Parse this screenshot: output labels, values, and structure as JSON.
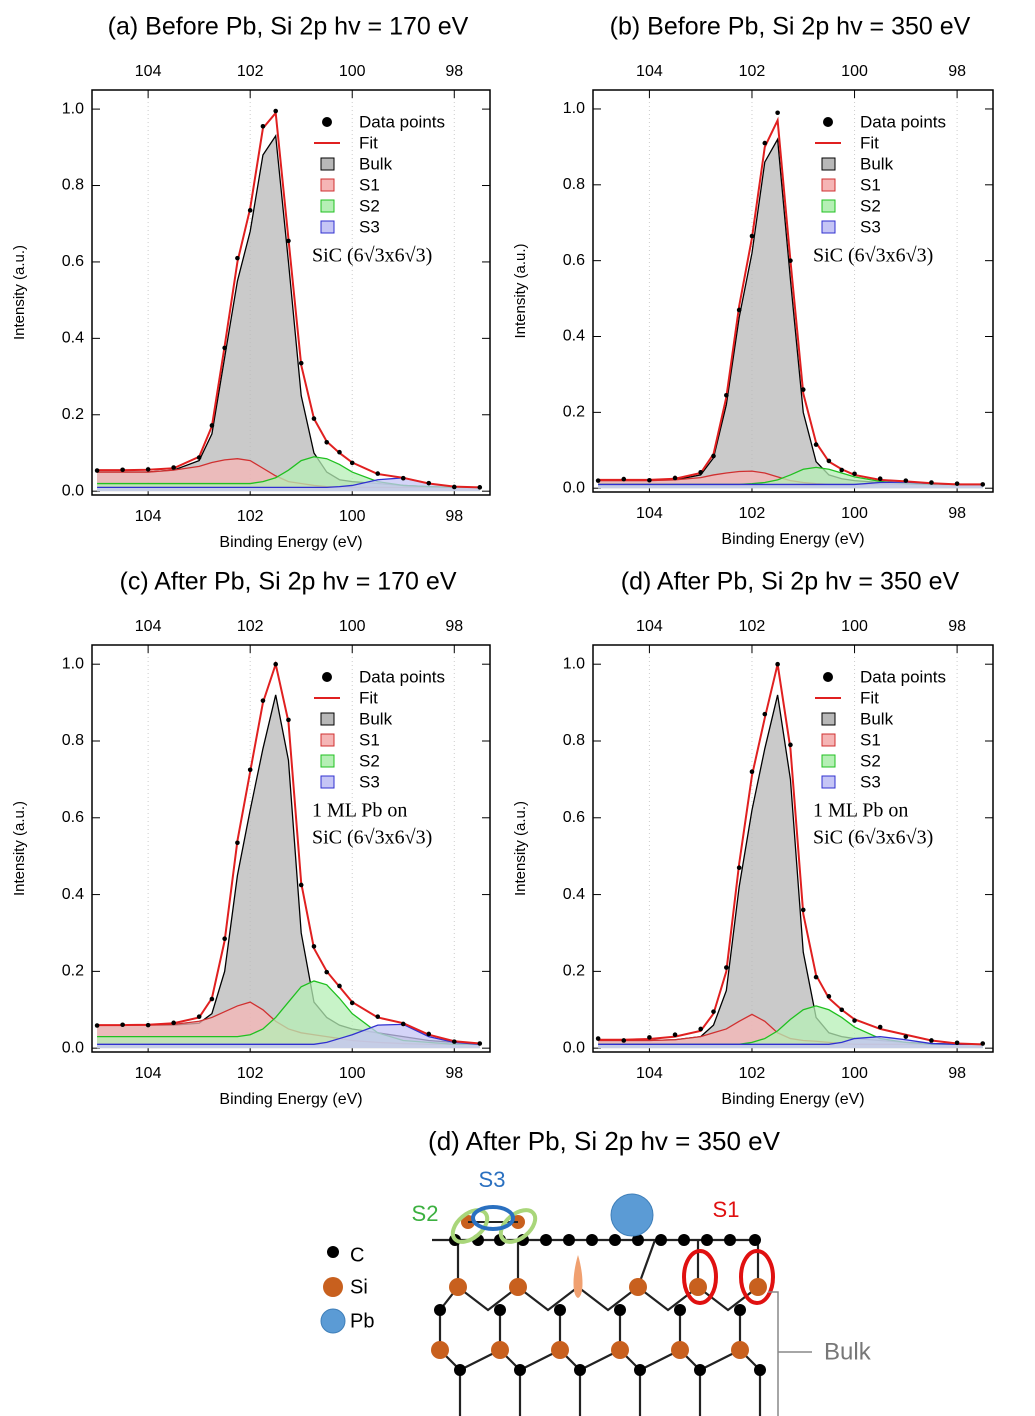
{
  "chart_data": [
    {
      "type": "line",
      "title": "(a)  Before Pb, Si 2p    hv = 170 eV",
      "xlabel": "Binding Energy (eV)",
      "ylabel": "Intensity (a.u.)",
      "annotations": [
        "SiC (6√3x6√3)"
      ],
      "xlim": [
        105.1,
        97.3
      ],
      "xticks": [
        104,
        102,
        100,
        98
      ],
      "ylim": [
        -0.01,
        1.05
      ],
      "yticks": [
        {
          "value": 0,
          "label": "0.0"
        },
        0.2,
        0.4,
        0.6,
        0.8,
        {
          "value": 1,
          "label": "1.0"
        }
      ],
      "grid": true,
      "x": [
        105,
        104.5,
        104,
        103.5,
        103,
        102.75,
        102.5,
        102.25,
        102,
        101.75,
        101.5,
        101.25,
        101,
        100.75,
        100.5,
        100.25,
        100,
        99.5,
        99,
        98.5,
        98,
        97.5
      ],
      "series": [
        {
          "name": "Data points",
          "type": "scatter",
          "color": "#000000",
          "values": [
            0.054,
            0.056,
            0.057,
            0.062,
            0.088,
            0.172,
            0.375,
            0.61,
            0.735,
            0.955,
            0.995,
            0.655,
            0.335,
            0.19,
            0.128,
            0.102,
            0.074,
            0.046,
            0.034,
            0.021,
            0.011,
            0.01
          ]
        },
        {
          "name": "Fit",
          "type": "line",
          "color": "#e02020",
          "values": [
            0.055,
            0.055,
            0.056,
            0.06,
            0.09,
            0.17,
            0.38,
            0.6,
            0.74,
            0.95,
            0.99,
            0.66,
            0.33,
            0.19,
            0.13,
            0.1,
            0.075,
            0.045,
            0.035,
            0.02,
            0.012,
            0.01
          ]
        },
        {
          "name": "Bulk",
          "type": "area",
          "color": "#000000",
          "fill": "#b8b8b8",
          "values": [
            0.05,
            0.05,
            0.05,
            0.055,
            0.08,
            0.15,
            0.35,
            0.55,
            0.68,
            0.88,
            0.93,
            0.6,
            0.25,
            0.1,
            0.05,
            0.03,
            0.025,
            0.02,
            0.015,
            0.012,
            0.01,
            0.01
          ]
        },
        {
          "name": "S1",
          "type": "area",
          "color": "#d03030",
          "fill": "#f5b5b5",
          "values": [
            0.05,
            0.05,
            0.05,
            0.055,
            0.065,
            0.075,
            0.082,
            0.085,
            0.08,
            0.06,
            0.04,
            0.025,
            0.02,
            0.015,
            0.012,
            0.011,
            0.01,
            0.01,
            0.01,
            0.01,
            0.01,
            0.01
          ]
        },
        {
          "name": "S2",
          "type": "area",
          "color": "#20c020",
          "fill": "#b5efb5",
          "values": [
            0.02,
            0.02,
            0.02,
            0.02,
            0.02,
            0.02,
            0.02,
            0.02,
            0.02,
            0.025,
            0.035,
            0.055,
            0.08,
            0.09,
            0.085,
            0.07,
            0.05,
            0.025,
            0.015,
            0.012,
            0.01,
            0.01
          ]
        },
        {
          "name": "S3",
          "type": "area",
          "color": "#3030d0",
          "fill": "#c5c5f5",
          "values": [
            0.01,
            0.01,
            0.01,
            0.01,
            0.01,
            0.01,
            0.01,
            0.01,
            0.01,
            0.01,
            0.01,
            0.01,
            0.01,
            0.01,
            0.01,
            0.012,
            0.015,
            0.03,
            0.035,
            0.02,
            0.012,
            0.01
          ]
        }
      ]
    },
    {
      "type": "line",
      "title": "(b)  Before Pb, Si 2p    hv = 350 eV",
      "xlabel": "Binding Energy (eV)",
      "ylabel": "Intensity (a.u.)",
      "annotations": [
        "SiC (6√3x6√3)"
      ],
      "xlim": [
        105.1,
        97.3
      ],
      "xticks": [
        104,
        102,
        100,
        98
      ],
      "ylim": [
        -0.01,
        1.05
      ],
      "yticks": [
        {
          "value": 0,
          "label": "0.0"
        },
        0.2,
        0.4,
        0.6,
        0.8,
        {
          "value": 1,
          "label": "1.0"
        }
      ],
      "grid": true,
      "x": [
        105,
        104.5,
        104,
        103.5,
        103,
        102.75,
        102.5,
        102.25,
        102,
        101.75,
        101.5,
        101.25,
        101,
        100.75,
        100.5,
        100.25,
        100,
        99.5,
        99,
        98.5,
        98,
        97.5
      ],
      "series": [
        {
          "name": "Data points",
          "type": "scatter",
          "color": "#000000",
          "values": [
            0.02,
            0.024,
            0.021,
            0.027,
            0.042,
            0.085,
            0.245,
            0.47,
            0.665,
            0.91,
            0.99,
            0.6,
            0.26,
            0.115,
            0.072,
            0.048,
            0.038,
            0.025,
            0.02,
            0.015,
            0.012,
            0.01
          ]
        },
        {
          "name": "Fit",
          "type": "line",
          "color": "#e02020",
          "values": [
            0.022,
            0.022,
            0.022,
            0.025,
            0.04,
            0.09,
            0.24,
            0.48,
            0.66,
            0.9,
            0.97,
            0.6,
            0.25,
            0.12,
            0.07,
            0.05,
            0.035,
            0.022,
            0.018,
            0.013,
            0.01,
            0.01
          ]
        },
        {
          "name": "Bulk",
          "type": "area",
          "color": "#000000",
          "fill": "#b8b8b8",
          "values": [
            0.02,
            0.02,
            0.02,
            0.022,
            0.035,
            0.08,
            0.22,
            0.45,
            0.62,
            0.86,
            0.92,
            0.55,
            0.2,
            0.07,
            0.035,
            0.025,
            0.02,
            0.015,
            0.012,
            0.01,
            0.01,
            0.01
          ]
        },
        {
          "name": "S1",
          "type": "area",
          "color": "#d03030",
          "fill": "#f5b5b5",
          "values": [
            0.02,
            0.02,
            0.02,
            0.022,
            0.028,
            0.035,
            0.04,
            0.044,
            0.045,
            0.04,
            0.03,
            0.02,
            0.015,
            0.012,
            0.01,
            0.01,
            0.01,
            0.01,
            0.01,
            0.01,
            0.01,
            0.01
          ]
        },
        {
          "name": "S2",
          "type": "area",
          "color": "#20c020",
          "fill": "#b5efb5",
          "values": [
            0.01,
            0.01,
            0.01,
            0.01,
            0.01,
            0.01,
            0.01,
            0.01,
            0.012,
            0.015,
            0.022,
            0.035,
            0.05,
            0.055,
            0.05,
            0.04,
            0.03,
            0.018,
            0.012,
            0.01,
            0.01,
            0.01
          ]
        },
        {
          "name": "S3",
          "type": "area",
          "color": "#3030d0",
          "fill": "#c5c5f5",
          "values": [
            0.01,
            0.01,
            0.01,
            0.01,
            0.01,
            0.01,
            0.01,
            0.01,
            0.01,
            0.01,
            0.01,
            0.01,
            0.01,
            0.01,
            0.01,
            0.01,
            0.01,
            0.015,
            0.016,
            0.012,
            0.01,
            0.01
          ]
        }
      ]
    },
    {
      "type": "line",
      "title": "(c)  After Pb, Si 2p    hv = 170 eV",
      "xlabel": "Binding Energy (eV)",
      "ylabel": "Intensity (a.u.)",
      "annotations": [
        "1 ML Pb on",
        "SiC (6√3x6√3)"
      ],
      "xlim": [
        105.1,
        97.3
      ],
      "xticks": [
        104,
        102,
        100,
        98
      ],
      "ylim": [
        -0.01,
        1.05
      ],
      "yticks": [
        {
          "value": 0,
          "label": "0.0"
        },
        0.2,
        0.4,
        0.6,
        0.8,
        {
          "value": 1,
          "label": "1.0"
        }
      ],
      "grid": true,
      "x": [
        105,
        104.5,
        104,
        103.5,
        103,
        102.75,
        102.5,
        102.25,
        102,
        101.75,
        101.5,
        101.25,
        101,
        100.75,
        100.5,
        100.25,
        100,
        99.5,
        99,
        98.5,
        98,
        97.5
      ],
      "series": [
        {
          "name": "Data points",
          "type": "scatter",
          "color": "#000000",
          "values": [
            0.059,
            0.061,
            0.06,
            0.066,
            0.082,
            0.128,
            0.285,
            0.535,
            0.725,
            0.905,
            1.0,
            0.855,
            0.425,
            0.265,
            0.198,
            0.162,
            0.118,
            0.082,
            0.063,
            0.037,
            0.017,
            0.012
          ]
        },
        {
          "name": "Fit",
          "type": "line",
          "color": "#e02020",
          "values": [
            0.06,
            0.06,
            0.061,
            0.065,
            0.08,
            0.13,
            0.28,
            0.54,
            0.72,
            0.9,
            1.0,
            0.85,
            0.43,
            0.26,
            0.2,
            0.16,
            0.12,
            0.08,
            0.065,
            0.035,
            0.018,
            0.012
          ]
        },
        {
          "name": "Bulk",
          "type": "area",
          "color": "#000000",
          "fill": "#b8b8b8",
          "values": [
            0.06,
            0.06,
            0.06,
            0.06,
            0.065,
            0.09,
            0.2,
            0.45,
            0.62,
            0.78,
            0.92,
            0.75,
            0.3,
            0.12,
            0.08,
            0.06,
            0.05,
            0.04,
            0.03,
            0.02,
            0.015,
            0.01
          ]
        },
        {
          "name": "S1",
          "type": "area",
          "color": "#d03030",
          "fill": "#f5b5b5",
          "values": [
            0.06,
            0.06,
            0.06,
            0.062,
            0.07,
            0.08,
            0.095,
            0.11,
            0.12,
            0.1,
            0.07,
            0.05,
            0.04,
            0.035,
            0.03,
            0.025,
            0.02,
            0.015,
            0.012,
            0.01,
            0.01,
            0.01
          ]
        },
        {
          "name": "S2",
          "type": "area",
          "color": "#20c020",
          "fill": "#b5efb5",
          "values": [
            0.03,
            0.03,
            0.03,
            0.03,
            0.03,
            0.03,
            0.03,
            0.03,
            0.035,
            0.05,
            0.08,
            0.12,
            0.16,
            0.175,
            0.165,
            0.13,
            0.09,
            0.04,
            0.02,
            0.015,
            0.01,
            0.01
          ]
        },
        {
          "name": "S3",
          "type": "area",
          "color": "#3030d0",
          "fill": "#c5c5f5",
          "values": [
            0.01,
            0.01,
            0.01,
            0.01,
            0.01,
            0.01,
            0.01,
            0.01,
            0.01,
            0.01,
            0.01,
            0.01,
            0.01,
            0.01,
            0.015,
            0.025,
            0.035,
            0.06,
            0.062,
            0.03,
            0.015,
            0.01
          ]
        }
      ]
    },
    {
      "type": "line",
      "title": "(d)  After Pb, Si 2p    hv = 350 eV",
      "xlabel": "Binding Energy (eV)",
      "ylabel": "Intensity (a.u.)",
      "annotations": [
        "1 ML Pb on",
        "SiC (6√3x6√3)"
      ],
      "xlim": [
        105.1,
        97.3
      ],
      "xticks": [
        104,
        102,
        100,
        98
      ],
      "ylim": [
        -0.01,
        1.05
      ],
      "yticks": [
        {
          "value": 0,
          "label": "0.0"
        },
        0.2,
        0.4,
        0.6,
        0.8,
        {
          "value": 1,
          "label": "1.0"
        }
      ],
      "grid": true,
      "x": [
        105,
        104.5,
        104,
        103.5,
        103,
        102.75,
        102.5,
        102.25,
        102,
        101.75,
        101.5,
        101.25,
        101,
        100.75,
        100.5,
        100.25,
        100,
        99.5,
        99,
        98.5,
        98,
        97.5
      ],
      "series": [
        {
          "name": "Data points",
          "type": "scatter",
          "color": "#000000",
          "values": [
            0.025,
            0.02,
            0.028,
            0.035,
            0.05,
            0.095,
            0.21,
            0.47,
            0.72,
            0.87,
            1.0,
            0.79,
            0.36,
            0.185,
            0.135,
            0.1,
            0.072,
            0.055,
            0.03,
            0.02,
            0.014,
            0.012
          ]
        },
        {
          "name": "Fit",
          "type": "line",
          "color": "#e02020",
          "values": [
            0.022,
            0.022,
            0.024,
            0.03,
            0.045,
            0.09,
            0.2,
            0.48,
            0.71,
            0.86,
            1.0,
            0.78,
            0.35,
            0.19,
            0.13,
            0.1,
            0.075,
            0.05,
            0.035,
            0.02,
            0.012,
            0.01
          ]
        },
        {
          "name": "Bulk",
          "type": "area",
          "color": "#000000",
          "fill": "#b8b8b8",
          "values": [
            0.02,
            0.02,
            0.02,
            0.022,
            0.03,
            0.06,
            0.15,
            0.42,
            0.62,
            0.78,
            0.92,
            0.7,
            0.25,
            0.08,
            0.04,
            0.03,
            0.025,
            0.02,
            0.015,
            0.012,
            0.01,
            0.01
          ]
        },
        {
          "name": "S1",
          "type": "area",
          "color": "#d03030",
          "fill": "#f5b5b5",
          "values": [
            0.02,
            0.02,
            0.02,
            0.022,
            0.03,
            0.04,
            0.05,
            0.07,
            0.088,
            0.07,
            0.04,
            0.025,
            0.02,
            0.018,
            0.015,
            0.012,
            0.01,
            0.01,
            0.01,
            0.01,
            0.01,
            0.01
          ]
        },
        {
          "name": "S2",
          "type": "area",
          "color": "#20c020",
          "fill": "#b5efb5",
          "values": [
            0.01,
            0.01,
            0.01,
            0.01,
            0.01,
            0.01,
            0.01,
            0.01,
            0.015,
            0.025,
            0.045,
            0.075,
            0.1,
            0.11,
            0.1,
            0.08,
            0.055,
            0.025,
            0.015,
            0.01,
            0.01,
            0.01
          ]
        },
        {
          "name": "S3",
          "type": "area",
          "color": "#3030d0",
          "fill": "#c5c5f5",
          "values": [
            0.01,
            0.01,
            0.01,
            0.01,
            0.01,
            0.01,
            0.01,
            0.01,
            0.01,
            0.01,
            0.01,
            0.01,
            0.01,
            0.01,
            0.01,
            0.015,
            0.025,
            0.03,
            0.022,
            0.012,
            0.01,
            0.01
          ]
        }
      ]
    }
  ],
  "diagram": {
    "title": "(d)  After Pb, Si 2p    hv = 350 eV",
    "labels": [
      "S3",
      "S2",
      "S1",
      "Bulk"
    ],
    "legend": [
      "C",
      "Si",
      "Pb"
    ]
  }
}
